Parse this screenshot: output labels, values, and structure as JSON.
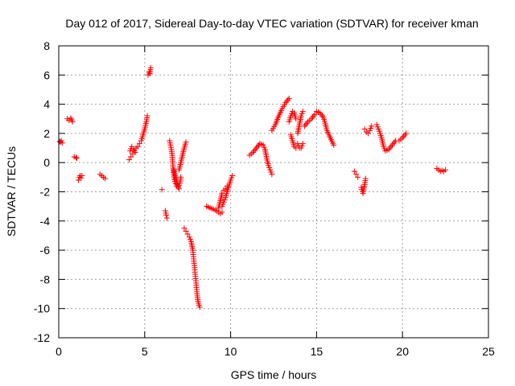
{
  "chart_data": {
    "type": "scatter",
    "title": "Day 012 of 2017, Sidereal Day-to-day VTEC variation (SDTVAR) for receiver kman",
    "xlabel": "GPS time / hours",
    "ylabel": "SDTVAR / TECUs",
    "xlim": [
      0,
      25
    ],
    "ylim": [
      -12,
      8
    ],
    "xticks": [
      "0",
      "5",
      "10",
      "15",
      "20",
      "25"
    ],
    "yticks": [
      "-12",
      "-10",
      "-8",
      "-6",
      "-4",
      "-2",
      "0",
      "2",
      "4",
      "6",
      "8"
    ],
    "grid": true,
    "marker": "plus",
    "colors": {
      "series": "#ff0000",
      "grid": "#a0a0a0",
      "axis": "#000000"
    },
    "series": [
      {
        "name": "kman",
        "segments": [
          [
            [
              0.05,
              1.45
            ],
            [
              0.1,
              1.4
            ],
            [
              0.15,
              1.5
            ],
            [
              0.2,
              1.35
            ]
          ],
          [
            [
              0.5,
              3.0
            ],
            [
              0.6,
              2.9
            ],
            [
              0.7,
              3.05
            ],
            [
              0.8,
              2.8
            ]
          ],
          [
            [
              0.9,
              0.4
            ],
            [
              1.0,
              0.35
            ],
            [
              1.05,
              0.3
            ]
          ],
          [
            [
              1.15,
              -1.2
            ],
            [
              1.2,
              -1.0
            ],
            [
              1.25,
              -0.9
            ],
            [
              1.3,
              -1.05
            ],
            [
              1.35,
              -0.9
            ]
          ],
          [
            [
              2.4,
              -0.8
            ],
            [
              2.5,
              -0.9
            ],
            [
              2.6,
              -1.0
            ],
            [
              2.7,
              -1.1
            ]
          ],
          [
            [
              4.1,
              0.2
            ],
            [
              4.2,
              0.4
            ],
            [
              4.3,
              0.6
            ],
            [
              4.4,
              0.8
            ],
            [
              4.5,
              1.0
            ],
            [
              4.6,
              1.1
            ],
            [
              4.7,
              1.3
            ],
            [
              4.8,
              1.5
            ],
            [
              4.9,
              1.9
            ],
            [
              5.0,
              2.3
            ],
            [
              5.1,
              2.8
            ],
            [
              5.15,
              3.2
            ]
          ],
          [
            [
              4.15,
              0.8
            ],
            [
              4.25,
              1.1
            ],
            [
              4.35,
              0.9
            ],
            [
              4.45,
              0.7
            ]
          ],
          [
            [
              5.2,
              6.0
            ],
            [
              5.25,
              6.2
            ],
            [
              5.3,
              6.1
            ],
            [
              5.35,
              6.5
            ]
          ],
          [
            [
              6.0,
              -1.85
            ]
          ],
          [
            [
              6.2,
              -3.3
            ],
            [
              6.25,
              -3.6
            ],
            [
              6.3,
              -3.8
            ]
          ],
          [
            [
              6.45,
              1.5
            ],
            [
              6.5,
              1.2
            ],
            [
              6.55,
              0.9
            ],
            [
              6.6,
              0.5
            ],
            [
              6.65,
              -0.3
            ],
            [
              6.7,
              -0.8
            ],
            [
              6.75,
              -1.3
            ],
            [
              6.85,
              -1.6
            ],
            [
              6.95,
              -1.7
            ],
            [
              7.05,
              -1.4
            ],
            [
              7.1,
              -1.0
            ]
          ],
          [
            [
              6.7,
              -0.5
            ],
            [
              6.8,
              -1.0
            ],
            [
              6.9,
              -1.5
            ],
            [
              7.0,
              -1.8
            ]
          ],
          [
            [
              7.0,
              -0.5
            ],
            [
              7.1,
              0.0
            ],
            [
              7.2,
              0.5
            ],
            [
              7.3,
              1.0
            ],
            [
              7.4,
              1.4
            ]
          ],
          [
            [
              7.3,
              -4.5
            ],
            [
              7.4,
              -4.7
            ],
            [
              7.5,
              -4.9
            ],
            [
              7.6,
              -5.1
            ],
            [
              7.7,
              -5.4
            ],
            [
              7.8,
              -6.0
            ],
            [
              7.85,
              -6.6
            ],
            [
              7.9,
              -7.2
            ],
            [
              7.95,
              -7.8
            ],
            [
              8.0,
              -8.4
            ],
            [
              8.05,
              -9.0
            ],
            [
              8.1,
              -9.5
            ],
            [
              8.2,
              -9.9
            ]
          ],
          [
            [
              8.6,
              -3.0
            ],
            [
              8.8,
              -3.1
            ],
            [
              9.0,
              -3.2
            ],
            [
              9.2,
              -3.3
            ],
            [
              9.4,
              -3.5
            ],
            [
              9.5,
              -3.4
            ]
          ],
          [
            [
              9.3,
              -3.1
            ],
            [
              9.4,
              -2.6
            ],
            [
              9.5,
              -2.1
            ],
            [
              9.6,
              -1.9
            ],
            [
              9.7,
              -1.8
            ],
            [
              9.8,
              -1.6
            ]
          ],
          [
            [
              9.5,
              -3.0
            ],
            [
              9.6,
              -2.7
            ],
            [
              9.7,
              -2.4
            ],
            [
              9.8,
              -2.0
            ],
            [
              9.9,
              -1.6
            ],
            [
              10.0,
              -1.2
            ],
            [
              10.1,
              -0.9
            ]
          ],
          [
            [
              11.1,
              0.5
            ],
            [
              11.3,
              0.7
            ],
            [
              11.5,
              1.0
            ],
            [
              11.7,
              1.3
            ],
            [
              11.9,
              1.2
            ],
            [
              12.0,
              0.9
            ],
            [
              12.1,
              0.3
            ],
            [
              12.2,
              -0.2
            ],
            [
              12.3,
              -0.5
            ],
            [
              12.4,
              -0.8
            ]
          ],
          [
            [
              12.4,
              2.2
            ],
            [
              12.6,
              2.6
            ],
            [
              12.8,
              3.2
            ],
            [
              13.0,
              3.7
            ],
            [
              13.2,
              4.1
            ],
            [
              13.4,
              4.4
            ]
          ],
          [
            [
              13.4,
              2.8
            ],
            [
              13.5,
              3.2
            ],
            [
              13.6,
              3.5
            ],
            [
              13.7,
              3.4
            ],
            [
              13.8,
              3.0
            ]
          ],
          [
            [
              13.5,
              1.9
            ],
            [
              13.6,
              1.5
            ],
            [
              13.7,
              1.1
            ],
            [
              13.8,
              1.0
            ]
          ],
          [
            [
              13.9,
              1.3
            ],
            [
              14.0,
              1.0
            ],
            [
              14.1,
              1.0
            ],
            [
              14.2,
              1.3
            ]
          ],
          [
            [
              13.9,
              2.0
            ],
            [
              14.0,
              2.6
            ],
            [
              14.1,
              3.2
            ],
            [
              14.2,
              3.5
            ]
          ],
          [
            [
              14.3,
              2.5
            ],
            [
              14.5,
              2.8
            ],
            [
              14.7,
              3.0
            ],
            [
              14.9,
              3.3
            ],
            [
              15.0,
              3.5
            ],
            [
              15.2,
              3.4
            ],
            [
              15.4,
              3.1
            ],
            [
              15.5,
              2.7
            ],
            [
              15.6,
              2.2
            ],
            [
              15.8,
              1.7
            ],
            [
              16.0,
              1.2
            ]
          ],
          [
            [
              17.2,
              -0.6
            ],
            [
              17.3,
              -0.8
            ],
            [
              17.4,
              -1.0
            ]
          ],
          [
            [
              17.6,
              -1.7
            ],
            [
              17.7,
              -2.1
            ],
            [
              17.8,
              -1.5
            ],
            [
              17.85,
              -1.1
            ]
          ],
          [
            [
              17.8,
              2.3
            ],
            [
              17.9,
              2.1
            ],
            [
              18.0,
              2.0
            ],
            [
              18.1,
              2.2
            ],
            [
              18.2,
              2.5
            ]
          ],
          [
            [
              18.5,
              2.6
            ],
            [
              18.6,
              2.3
            ],
            [
              18.7,
              2.0
            ],
            [
              18.8,
              1.6
            ],
            [
              18.9,
              1.1
            ],
            [
              19.0,
              0.8
            ],
            [
              19.2,
              0.9
            ],
            [
              19.4,
              1.2
            ],
            [
              19.6,
              1.5
            ],
            [
              19.8,
              1.5
            ],
            [
              20.0,
              1.7
            ],
            [
              20.2,
              2.0
            ]
          ],
          [
            [
              22.0,
              -0.4
            ],
            [
              22.1,
              -0.5
            ],
            [
              22.2,
              -0.6
            ],
            [
              22.3,
              -0.55
            ],
            [
              22.4,
              -0.6
            ],
            [
              22.5,
              -0.5
            ]
          ]
        ]
      }
    ]
  }
}
